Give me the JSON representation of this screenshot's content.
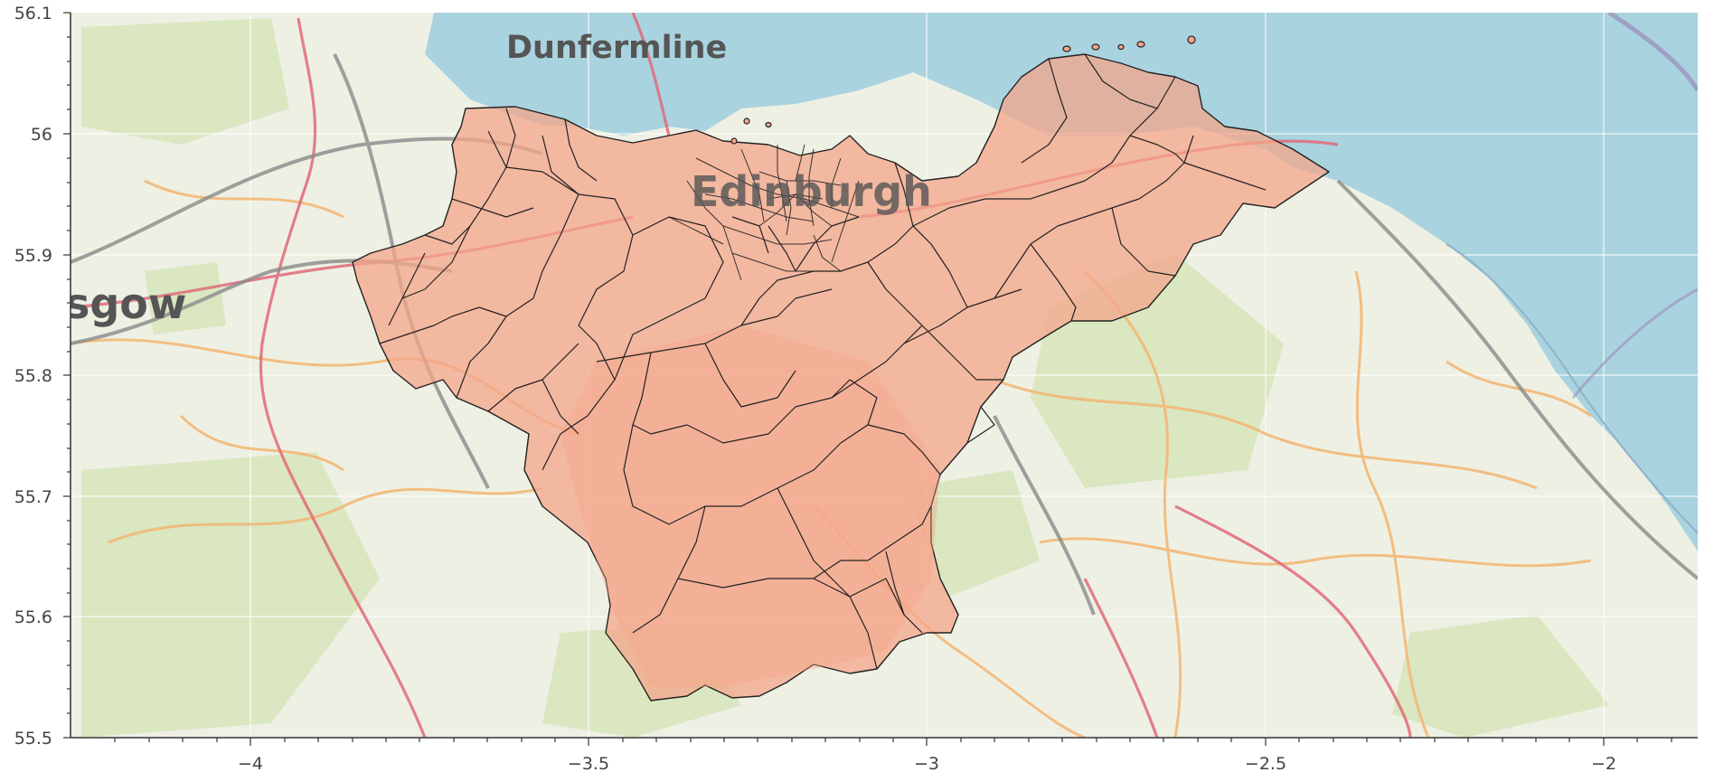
{
  "map": {
    "place_labels": [
      "Dunfermline",
      "Edinburgh",
      "sgow"
    ],
    "x_axis": {
      "ticks": [
        "−4",
        "−3.5",
        "−3",
        "−2.5",
        "−2"
      ],
      "range": [
        -4.27,
        -1.86
      ]
    },
    "y_axis": {
      "ticks": [
        "56.1",
        "56",
        "55.9",
        "55.8",
        "55.7",
        "55.6",
        "55.5"
      ],
      "range": [
        55.5,
        56.1
      ]
    },
    "grid": true
  },
  "colors": {
    "sea": "#a9d3df",
    "land": "#eef0e4",
    "park": "#d7e6bd",
    "region_fill": "#f4a58a",
    "region_stroke": "#222222",
    "major_road": "#e06a78",
    "secondary_road": "#f3b877",
    "rail": "#8a8a8a"
  }
}
